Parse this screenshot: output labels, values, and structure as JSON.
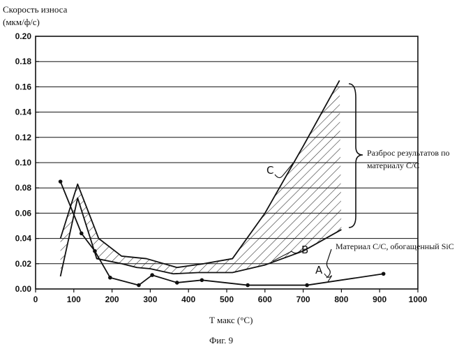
{
  "chart_data": {
    "type": "line",
    "ylabel_line1": "Скорость износа",
    "ylabel_line2": "(мкм/ф/с)",
    "xlabel": "T макс (°C)",
    "caption": "Фиг. 9",
    "xlim": [
      0,
      1000
    ],
    "ylim": [
      0,
      0.2
    ],
    "x_ticks": [
      "0",
      "100",
      "200",
      "300",
      "400",
      "500",
      "600",
      "700",
      "800",
      "900",
      "1000"
    ],
    "y_ticks": [
      "0.00",
      "0.02",
      "0.04",
      "0.06",
      "0.08",
      "0.10",
      "0.12",
      "0.14",
      "0.16",
      "0.18",
      "0.20"
    ],
    "grid": true,
    "annotations": {
      "range": "Разброс результатов по",
      "range2": "материалу С/С",
      "sic": "Материал  С/С, обогащенный SiC"
    },
    "series": [
      {
        "name": "A",
        "x": [
          65,
          120,
          155,
          195,
          270,
          305,
          370,
          435,
          555,
          710,
          910
        ],
        "y": [
          0.085,
          0.044,
          0.03,
          0.009,
          0.003,
          0.011,
          0.005,
          0.007,
          0.003,
          0.003,
          0.012
        ],
        "markers": true
      },
      {
        "name": "B",
        "x": [
          65,
          110,
          160,
          225,
          265,
          300,
          360,
          425,
          515,
          600,
          700,
          800
        ],
        "y": [
          0.01,
          0.072,
          0.024,
          0.02,
          0.017,
          0.016,
          0.012,
          0.013,
          0.013,
          0.019,
          0.03,
          0.047
        ],
        "markers": false
      },
      {
        "name": "C",
        "x": [
          65,
          110,
          165,
          225,
          290,
          370,
          440,
          515,
          600,
          700,
          795
        ],
        "y": [
          0.04,
          0.083,
          0.04,
          0.026,
          0.024,
          0.017,
          0.02,
          0.024,
          0.06,
          0.113,
          0.165
        ],
        "markers": false
      }
    ]
  }
}
